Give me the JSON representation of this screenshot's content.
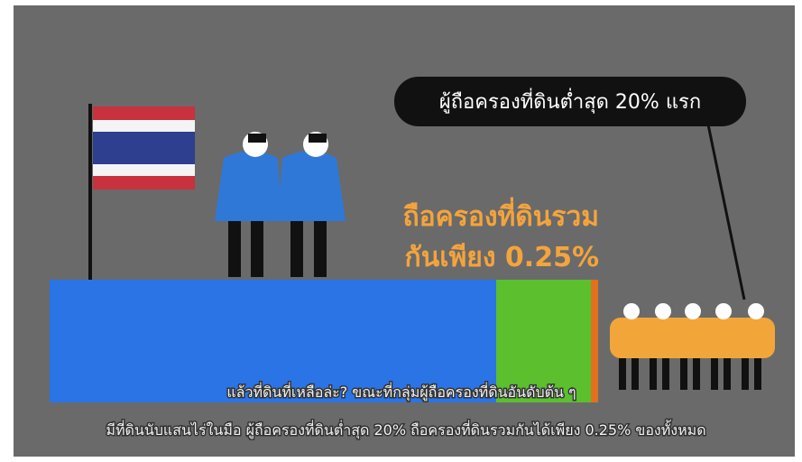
{
  "bubble": {
    "text": "ผู้ถือครองที่ดินต่ำสุด 20% แรก"
  },
  "highlight": {
    "line1": "ถือครองที่ดินรวม",
    "line2": "กันเพียง 0.25%"
  },
  "subtitles": [
    "แล้วที่ดินที่เหลือล่ะ? ขณะที่กลุ่มผู้ถือครองที่ดินอันดับต้น ๆ",
    "มีที่ดินนับแสนไร่ในมือ ผู้ถือครองที่ดินต่ำสุด 20% ถือครองที่ดินรวมกันได้เพียง 0.25% ของทั้งหมด"
  ]
}
